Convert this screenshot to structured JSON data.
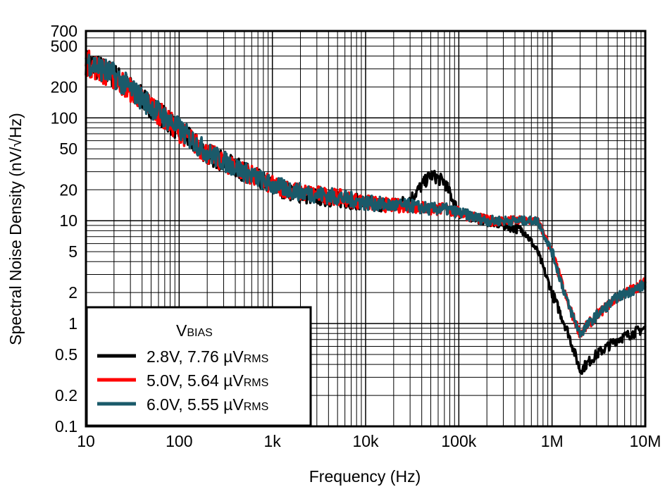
{
  "chart_data": {
    "type": "line",
    "xlabel": "Frequency (Hz)",
    "ylabel": "Spectral Noise Density (nV/√Hz)",
    "xscale": "log",
    "yscale": "log",
    "xlim": [
      10,
      10000000
    ],
    "ylim": [
      0.1,
      700
    ],
    "grid": true,
    "legend_placement": "bottom-left",
    "legend_title": "V",
    "legend_title_sub": "BIAS",
    "x_ticks": [
      10,
      100,
      1000,
      10000,
      100000,
      1000000,
      10000000
    ],
    "x_tick_labels": [
      "10",
      "100",
      "1k",
      "10k",
      "100k",
      "1M",
      "10M"
    ],
    "y_ticks": [
      0.1,
      0.2,
      0.5,
      1,
      2,
      5,
      10,
      20,
      50,
      100,
      200,
      500,
      700
    ],
    "y_tick_labels": [
      "0.1",
      "0.2",
      "0.5",
      "1",
      "2",
      "5",
      "10",
      "20",
      "50",
      "100",
      "200",
      "500",
      "700"
    ],
    "x": [
      10,
      20,
      50,
      100,
      200,
      500,
      1000,
      2000,
      5000,
      10000,
      20000,
      30000,
      50000,
      70000,
      100000,
      200000,
      500000,
      700000,
      1000000,
      1500000,
      2000000,
      3000000,
      5000000,
      10000000
    ],
    "series": [
      {
        "name": "2.8V, 7.76 µV",
        "name_sub": "RMS",
        "color": "#000000",
        "values": [
          350,
          260,
          130,
          75,
          45,
          30,
          22,
          18,
          16,
          15,
          14,
          16,
          28,
          24,
          12,
          10,
          8,
          5,
          2,
          0.8,
          0.35,
          0.5,
          0.7,
          0.9
        ]
      },
      {
        "name": "5.0V, 5.64 µV",
        "name_sub": "RMS",
        "color": "#ff0000",
        "values": [
          350,
          250,
          130,
          75,
          45,
          30,
          22,
          19,
          17,
          15,
          14,
          14,
          13,
          13,
          12,
          10,
          10,
          10,
          5,
          1.5,
          0.8,
          1.2,
          1.8,
          2.5
        ]
      },
      {
        "name": "6.0V, 5.55 µV",
        "name_sub": "RMS",
        "color": "#1a5a6a",
        "values": [
          360,
          260,
          130,
          78,
          46,
          30,
          22,
          19,
          17,
          15,
          14,
          14,
          13,
          13,
          12,
          10,
          10,
          10,
          5,
          1.5,
          0.8,
          1.2,
          1.8,
          2.4
        ]
      }
    ]
  }
}
